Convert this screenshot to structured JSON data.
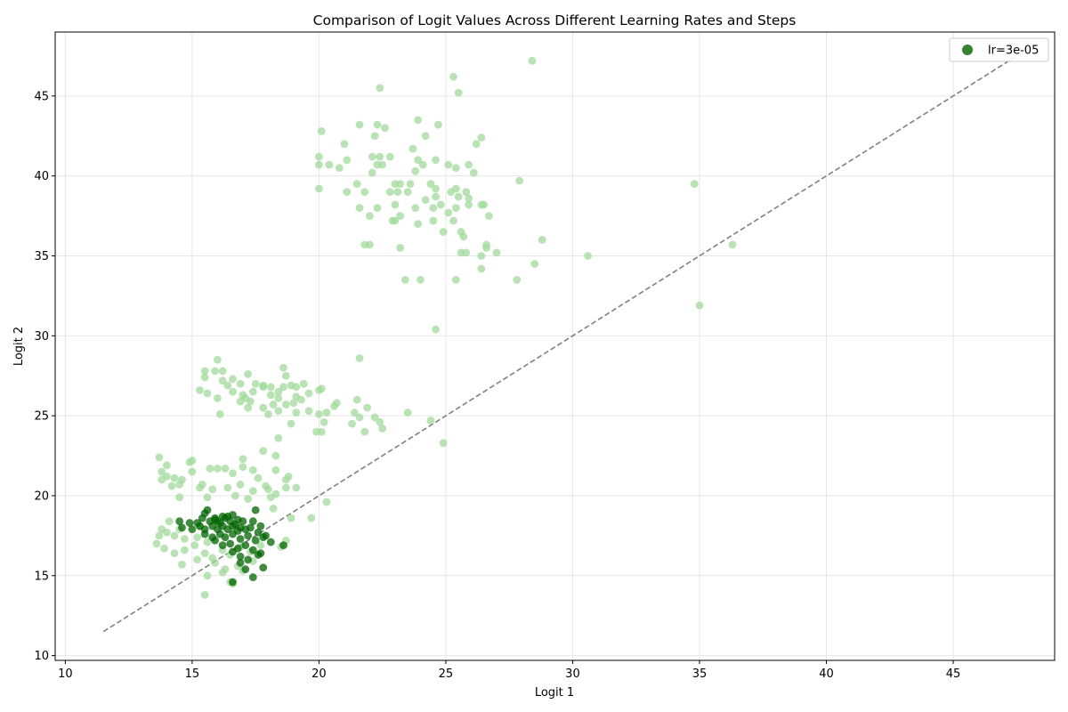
{
  "chart_data": {
    "type": "scatter",
    "title": "Comparison of Logit Values Across Different Learning Rates and Steps",
    "xlabel": "Logit 1",
    "ylabel": "Logit 2",
    "xlim": [
      9.6,
      49.0
    ],
    "ylim": [
      9.7,
      49.0
    ],
    "xticks": [
      10,
      15,
      20,
      25,
      30,
      35,
      40,
      45
    ],
    "yticks": [
      10,
      15,
      20,
      25,
      30,
      35,
      40,
      45
    ],
    "grid": true,
    "legend_position": "top-right",
    "reference_line": {
      "style": "dashed",
      "color": "#808080",
      "x": [
        11.5,
        47.5
      ],
      "y": [
        11.5,
        47.5
      ]
    },
    "series": [
      {
        "name": "",
        "color": "#a1d99b",
        "points": [
          [
            20.1,
            42.8
          ],
          [
            22.4,
            45.5
          ],
          [
            25.3,
            46.2
          ],
          [
            25.5,
            45.2
          ],
          [
            28.4,
            47.2
          ],
          [
            21.0,
            42.0
          ],
          [
            21.6,
            43.2
          ],
          [
            22.3,
            43.2
          ],
          [
            22.6,
            43.0
          ],
          [
            23.9,
            43.5
          ],
          [
            24.2,
            42.5
          ],
          [
            24.7,
            43.2
          ],
          [
            26.4,
            42.4
          ],
          [
            26.2,
            42.0
          ],
          [
            22.2,
            42.5
          ],
          [
            20.0,
            41.2
          ],
          [
            20.0,
            40.7
          ],
          [
            20.4,
            40.7
          ],
          [
            20.8,
            40.5
          ],
          [
            21.1,
            41.0
          ],
          [
            22.1,
            41.2
          ],
          [
            22.3,
            40.7
          ],
          [
            22.4,
            41.2
          ],
          [
            22.5,
            40.7
          ],
          [
            22.8,
            41.2
          ],
          [
            23.7,
            41.7
          ],
          [
            23.9,
            41.0
          ],
          [
            24.1,
            40.7
          ],
          [
            24.6,
            41.0
          ],
          [
            25.1,
            40.7
          ],
          [
            25.4,
            40.5
          ],
          [
            25.9,
            40.7
          ],
          [
            26.1,
            40.2
          ],
          [
            22.1,
            40.2
          ],
          [
            23.8,
            40.3
          ],
          [
            20.0,
            39.2
          ],
          [
            21.1,
            39.0
          ],
          [
            21.5,
            39.5
          ],
          [
            21.8,
            39.0
          ],
          [
            22.8,
            39.0
          ],
          [
            23.0,
            39.5
          ],
          [
            23.1,
            39.0
          ],
          [
            23.2,
            39.5
          ],
          [
            23.5,
            39.0
          ],
          [
            23.6,
            39.5
          ],
          [
            24.4,
            39.5
          ],
          [
            24.6,
            39.2
          ],
          [
            25.2,
            39.0
          ],
          [
            25.4,
            39.2
          ],
          [
            25.8,
            39.0
          ],
          [
            25.9,
            38.6
          ],
          [
            27.9,
            39.7
          ],
          [
            34.8,
            39.5
          ],
          [
            24.6,
            38.7
          ],
          [
            25.5,
            38.7
          ],
          [
            21.6,
            38.0
          ],
          [
            22.3,
            38.0
          ],
          [
            23.0,
            38.2
          ],
          [
            23.8,
            38.0
          ],
          [
            24.2,
            38.5
          ],
          [
            24.5,
            38.0
          ],
          [
            24.8,
            38.2
          ],
          [
            25.1,
            37.7
          ],
          [
            25.4,
            38.0
          ],
          [
            25.9,
            38.2
          ],
          [
            26.4,
            38.2
          ],
          [
            26.5,
            38.2
          ],
          [
            22.0,
            37.5
          ],
          [
            23.0,
            37.2
          ],
          [
            23.2,
            37.5
          ],
          [
            23.9,
            37.0
          ],
          [
            24.5,
            37.2
          ],
          [
            25.3,
            37.2
          ],
          [
            26.7,
            37.5
          ],
          [
            22.9,
            37.2
          ],
          [
            21.8,
            35.7
          ],
          [
            22.0,
            35.7
          ],
          [
            23.2,
            35.5
          ],
          [
            24.9,
            36.5
          ],
          [
            25.6,
            36.5
          ],
          [
            25.7,
            36.2
          ],
          [
            26.6,
            35.7
          ],
          [
            26.6,
            35.5
          ],
          [
            27.0,
            35.2
          ],
          [
            28.8,
            36.0
          ],
          [
            25.6,
            35.2
          ],
          [
            25.8,
            35.2
          ],
          [
            26.4,
            35.0
          ],
          [
            30.6,
            35.0
          ],
          [
            36.3,
            35.7
          ],
          [
            26.4,
            34.2
          ],
          [
            28.5,
            34.5
          ],
          [
            23.4,
            33.5
          ],
          [
            24.0,
            33.5
          ],
          [
            25.4,
            33.5
          ],
          [
            27.8,
            33.5
          ],
          [
            35.0,
            31.9
          ],
          [
            24.6,
            30.4
          ],
          [
            21.6,
            28.6
          ],
          [
            16.0,
            28.5
          ],
          [
            15.5,
            27.8
          ],
          [
            15.9,
            27.8
          ],
          [
            16.2,
            27.8
          ],
          [
            17.2,
            27.6
          ],
          [
            15.5,
            27.4
          ],
          [
            16.6,
            27.3
          ],
          [
            16.2,
            27.2
          ],
          [
            16.9,
            27.0
          ],
          [
            17.5,
            27.0
          ],
          [
            17.8,
            26.9
          ],
          [
            18.1,
            26.8
          ],
          [
            18.6,
            28.0
          ],
          [
            18.7,
            27.5
          ],
          [
            18.6,
            26.8
          ],
          [
            18.9,
            26.9
          ],
          [
            19.1,
            26.8
          ],
          [
            19.4,
            27.0
          ],
          [
            20.1,
            26.7
          ],
          [
            15.3,
            26.6
          ],
          [
            15.6,
            26.4
          ],
          [
            16.4,
            26.9
          ],
          [
            16.6,
            26.5
          ],
          [
            17.0,
            26.3
          ],
          [
            17.4,
            26.5
          ],
          [
            17.8,
            26.8
          ],
          [
            18.1,
            26.3
          ],
          [
            18.4,
            26.5
          ],
          [
            19.1,
            26.2
          ],
          [
            19.6,
            26.4
          ],
          [
            20.0,
            26.6
          ],
          [
            16.0,
            26.1
          ],
          [
            16.9,
            25.9
          ],
          [
            17.1,
            26.1
          ],
          [
            17.3,
            25.9
          ],
          [
            17.8,
            25.5
          ],
          [
            18.2,
            25.7
          ],
          [
            18.4,
            26.1
          ],
          [
            18.7,
            25.7
          ],
          [
            19.0,
            25.8
          ],
          [
            19.3,
            26.0
          ],
          [
            19.6,
            25.3
          ],
          [
            20.6,
            25.6
          ],
          [
            20.7,
            25.8
          ],
          [
            21.5,
            26.0
          ],
          [
            17.2,
            25.5
          ],
          [
            18.0,
            25.1
          ],
          [
            18.4,
            25.3
          ],
          [
            19.1,
            25.2
          ],
          [
            20.0,
            25.1
          ],
          [
            20.3,
            25.2
          ],
          [
            21.4,
            25.2
          ],
          [
            21.6,
            24.9
          ],
          [
            21.9,
            25.5
          ],
          [
            22.2,
            24.9
          ],
          [
            22.4,
            24.6
          ],
          [
            23.5,
            25.2
          ],
          [
            16.1,
            25.1
          ],
          [
            18.9,
            24.5
          ],
          [
            20.2,
            24.6
          ],
          [
            21.3,
            24.5
          ],
          [
            21.8,
            24.0
          ],
          [
            20.1,
            24.0
          ],
          [
            19.9,
            24.0
          ],
          [
            22.5,
            24.2
          ],
          [
            24.4,
            24.7
          ],
          [
            24.9,
            23.3
          ],
          [
            18.4,
            23.6
          ],
          [
            17.8,
            22.8
          ],
          [
            13.7,
            22.4
          ],
          [
            14.0,
            21.9
          ],
          [
            14.9,
            22.1
          ],
          [
            15.0,
            22.2
          ],
          [
            17.0,
            22.3
          ],
          [
            18.3,
            22.5
          ],
          [
            13.8,
            21.5
          ],
          [
            14.0,
            21.2
          ],
          [
            14.3,
            21.1
          ],
          [
            14.6,
            21.0
          ],
          [
            15.0,
            21.5
          ],
          [
            15.4,
            20.7
          ],
          [
            15.7,
            21.7
          ],
          [
            16.0,
            21.7
          ],
          [
            16.3,
            21.7
          ],
          [
            16.6,
            21.4
          ],
          [
            17.0,
            21.8
          ],
          [
            17.4,
            21.6
          ],
          [
            17.6,
            21.1
          ],
          [
            18.3,
            21.6
          ],
          [
            18.7,
            21.0
          ],
          [
            18.8,
            21.2
          ],
          [
            13.8,
            21.0
          ],
          [
            14.5,
            20.7
          ],
          [
            15.3,
            20.5
          ],
          [
            15.8,
            20.4
          ],
          [
            16.4,
            20.5
          ],
          [
            16.9,
            20.7
          ],
          [
            17.4,
            20.3
          ],
          [
            18.0,
            20.4
          ],
          [
            18.3,
            20.1
          ],
          [
            18.7,
            20.5
          ],
          [
            19.1,
            20.5
          ],
          [
            14.2,
            20.6
          ],
          [
            14.5,
            19.9
          ],
          [
            15.6,
            19.9
          ],
          [
            16.7,
            20.0
          ],
          [
            17.2,
            19.8
          ],
          [
            17.9,
            20.6
          ],
          [
            18.1,
            19.9
          ],
          [
            19.7,
            18.6
          ],
          [
            20.3,
            19.6
          ],
          [
            18.2,
            19.2
          ],
          [
            18.9,
            18.6
          ],
          [
            14.1,
            18.4
          ],
          [
            13.7,
            17.5
          ],
          [
            13.8,
            17.9
          ],
          [
            14.0,
            17.7
          ],
          [
            14.3,
            17.5
          ],
          [
            14.7,
            17.3
          ],
          [
            15.2,
            17.4
          ],
          [
            15.6,
            17.1
          ],
          [
            13.6,
            17.0
          ],
          [
            13.9,
            16.7
          ],
          [
            14.3,
            16.4
          ],
          [
            14.7,
            16.6
          ],
          [
            15.1,
            16.9
          ],
          [
            15.5,
            16.4
          ],
          [
            15.8,
            16.1
          ],
          [
            16.2,
            16.6
          ],
          [
            16.5,
            16.3
          ],
          [
            16.9,
            16.8
          ],
          [
            17.3,
            16.5
          ],
          [
            17.7,
            16.9
          ],
          [
            18.5,
            16.8
          ],
          [
            18.7,
            17.2
          ],
          [
            14.6,
            15.7
          ],
          [
            15.2,
            16.0
          ],
          [
            15.9,
            15.8
          ],
          [
            16.3,
            15.4
          ],
          [
            16.8,
            15.6
          ],
          [
            17.4,
            15.9
          ],
          [
            15.6,
            15.0
          ],
          [
            16.2,
            15.2
          ],
          [
            16.5,
            14.6
          ],
          [
            16.6,
            14.5
          ],
          [
            15.5,
            13.8
          ],
          [
            17.0,
            15.3
          ],
          [
            14.5,
            17.9
          ],
          [
            15.3,
            18.1
          ]
        ]
      },
      {
        "name": "lr=3e-05",
        "color": "#006400",
        "points": [
          [
            15.5,
            18.9
          ],
          [
            15.6,
            19.1
          ],
          [
            15.9,
            18.6
          ],
          [
            16.2,
            18.7
          ],
          [
            16.4,
            18.7
          ],
          [
            16.6,
            18.8
          ],
          [
            17.0,
            18.4
          ],
          [
            17.4,
            18.4
          ],
          [
            17.5,
            19.1
          ],
          [
            14.5,
            18.4
          ],
          [
            14.9,
            18.3
          ],
          [
            15.2,
            18.3
          ],
          [
            15.4,
            18.6
          ],
          [
            15.7,
            18.4
          ],
          [
            15.9,
            18.5
          ],
          [
            16.1,
            18.3
          ],
          [
            16.3,
            18.6
          ],
          [
            16.5,
            18.4
          ],
          [
            16.7,
            18.2
          ],
          [
            16.9,
            18.0
          ],
          [
            14.6,
            18.0
          ],
          [
            15.0,
            17.9
          ],
          [
            15.3,
            18.1
          ],
          [
            15.5,
            17.9
          ],
          [
            15.8,
            18.1
          ],
          [
            16.0,
            17.9
          ],
          [
            16.2,
            18.1
          ],
          [
            16.4,
            17.9
          ],
          [
            16.6,
            18.1
          ],
          [
            16.8,
            17.8
          ],
          [
            17.1,
            17.9
          ],
          [
            17.3,
            18.0
          ],
          [
            17.6,
            17.7
          ],
          [
            17.9,
            17.5
          ],
          [
            15.5,
            17.6
          ],
          [
            15.8,
            17.4
          ],
          [
            16.1,
            17.6
          ],
          [
            16.3,
            17.4
          ],
          [
            16.6,
            17.6
          ],
          [
            16.9,
            17.3
          ],
          [
            17.2,
            17.5
          ],
          [
            17.5,
            17.2
          ],
          [
            17.8,
            17.4
          ],
          [
            18.1,
            17.1
          ],
          [
            15.9,
            17.2
          ],
          [
            16.2,
            16.9
          ],
          [
            16.5,
            17.0
          ],
          [
            16.8,
            16.7
          ],
          [
            17.1,
            16.9
          ],
          [
            17.4,
            16.6
          ],
          [
            17.7,
            16.4
          ],
          [
            16.6,
            16.5
          ],
          [
            16.9,
            16.2
          ],
          [
            17.2,
            16.0
          ],
          [
            17.6,
            16.3
          ],
          [
            18.6,
            16.9
          ],
          [
            16.9,
            15.8
          ],
          [
            17.1,
            15.4
          ],
          [
            17.8,
            15.5
          ],
          [
            17.4,
            14.9
          ],
          [
            16.6,
            14.6
          ],
          [
            16.0,
            18.4
          ],
          [
            16.8,
            18.5
          ],
          [
            17.7,
            18.1
          ]
        ]
      }
    ]
  }
}
